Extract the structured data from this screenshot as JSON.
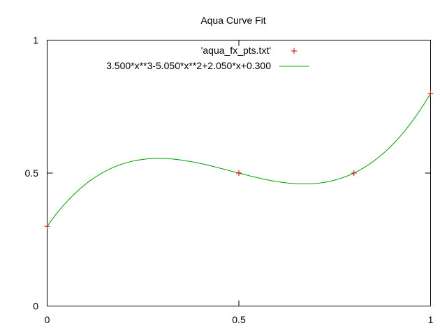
{
  "chart_data": {
    "type": "line",
    "title": "Aqua Curve Fit",
    "xlabel": "",
    "ylabel": "",
    "xlim": [
      0,
      1
    ],
    "ylim": [
      0,
      1
    ],
    "x_ticks": [
      0,
      0.5,
      1
    ],
    "y_ticks": [
      0,
      0.5,
      1
    ],
    "x_tick_labels": [
      "0",
      "0.5",
      "1"
    ],
    "y_tick_labels": [
      "0",
      "0.5",
      "1"
    ],
    "grid": false,
    "legend_position": "top-right",
    "series": [
      {
        "name": "'aqua_fx_pts.txt'",
        "kind": "points",
        "marker": "plus",
        "color": "#cc0000",
        "x": [
          0,
          0.5,
          0.8,
          1
        ],
        "y": [
          0.3,
          0.5,
          0.5,
          0.8
        ]
      },
      {
        "name": "3.500*x**3-5.050*x**2+2.050*x+0.300",
        "kind": "line",
        "color": "#00a000",
        "coefficients": [
          3.5,
          -5.05,
          2.05,
          0.3
        ]
      }
    ]
  }
}
